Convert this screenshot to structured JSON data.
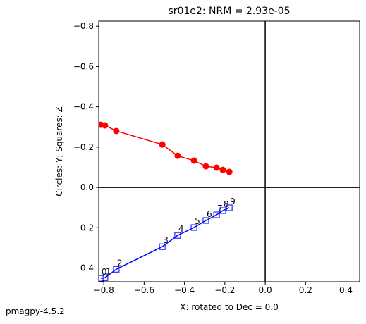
{
  "chart_data": {
    "type": "zijderveld",
    "title": "sr01e2: NRM =  2.93e-05",
    "xlabel": "X: rotated to Dec =     0.0",
    "ylabel": "Circles: Y; Squares: Z",
    "footer": "pmagpy-4.5.2",
    "x": [
      -0.815,
      -0.794,
      -0.738,
      -0.51,
      -0.434,
      -0.353,
      -0.294,
      -0.241,
      -0.21,
      -0.178
    ],
    "step_labels": [
      "0",
      "1",
      "2",
      "3",
      "4",
      "5",
      "6",
      "7",
      "8",
      "9"
    ],
    "series": [
      {
        "color": "#ff0000",
        "marker": "circle",
        "values": [
          -0.311,
          -0.308,
          -0.28,
          -0.213,
          -0.157,
          -0.133,
          -0.105,
          -0.098,
          -0.087,
          -0.077
        ]
      },
      {
        "color": "#0000ff",
        "marker": "square",
        "values": [
          0.451,
          0.448,
          0.406,
          0.294,
          0.238,
          0.199,
          0.164,
          0.136,
          0.115,
          0.101
        ]
      }
    ],
    "xlim": [
      -0.825,
      0.468
    ],
    "ylim": [
      -0.825,
      0.468
    ],
    "y_inverted": true,
    "xticks": [
      {
        "value": -0.8,
        "label": "−0.8"
      },
      {
        "value": -0.6,
        "label": "−0.6"
      },
      {
        "value": -0.4,
        "label": "−0.4"
      },
      {
        "value": -0.2,
        "label": "−0.2"
      },
      {
        "value": 0,
        "label": "0.0"
      },
      {
        "value": 0.2,
        "label": "0.2"
      },
      {
        "value": 0.4,
        "label": "0.4"
      }
    ],
    "yticks": [
      {
        "value": -0.8,
        "label": "−0.8"
      },
      {
        "value": -0.6,
        "label": "−0.6"
      },
      {
        "value": -0.4,
        "label": "−0.4"
      },
      {
        "value": -0.2,
        "label": "−0.2"
      },
      {
        "value": 0,
        "label": "0.0"
      },
      {
        "value": 0.2,
        "label": "0.2"
      },
      {
        "value": 0.4,
        "label": "0.4"
      }
    ]
  }
}
